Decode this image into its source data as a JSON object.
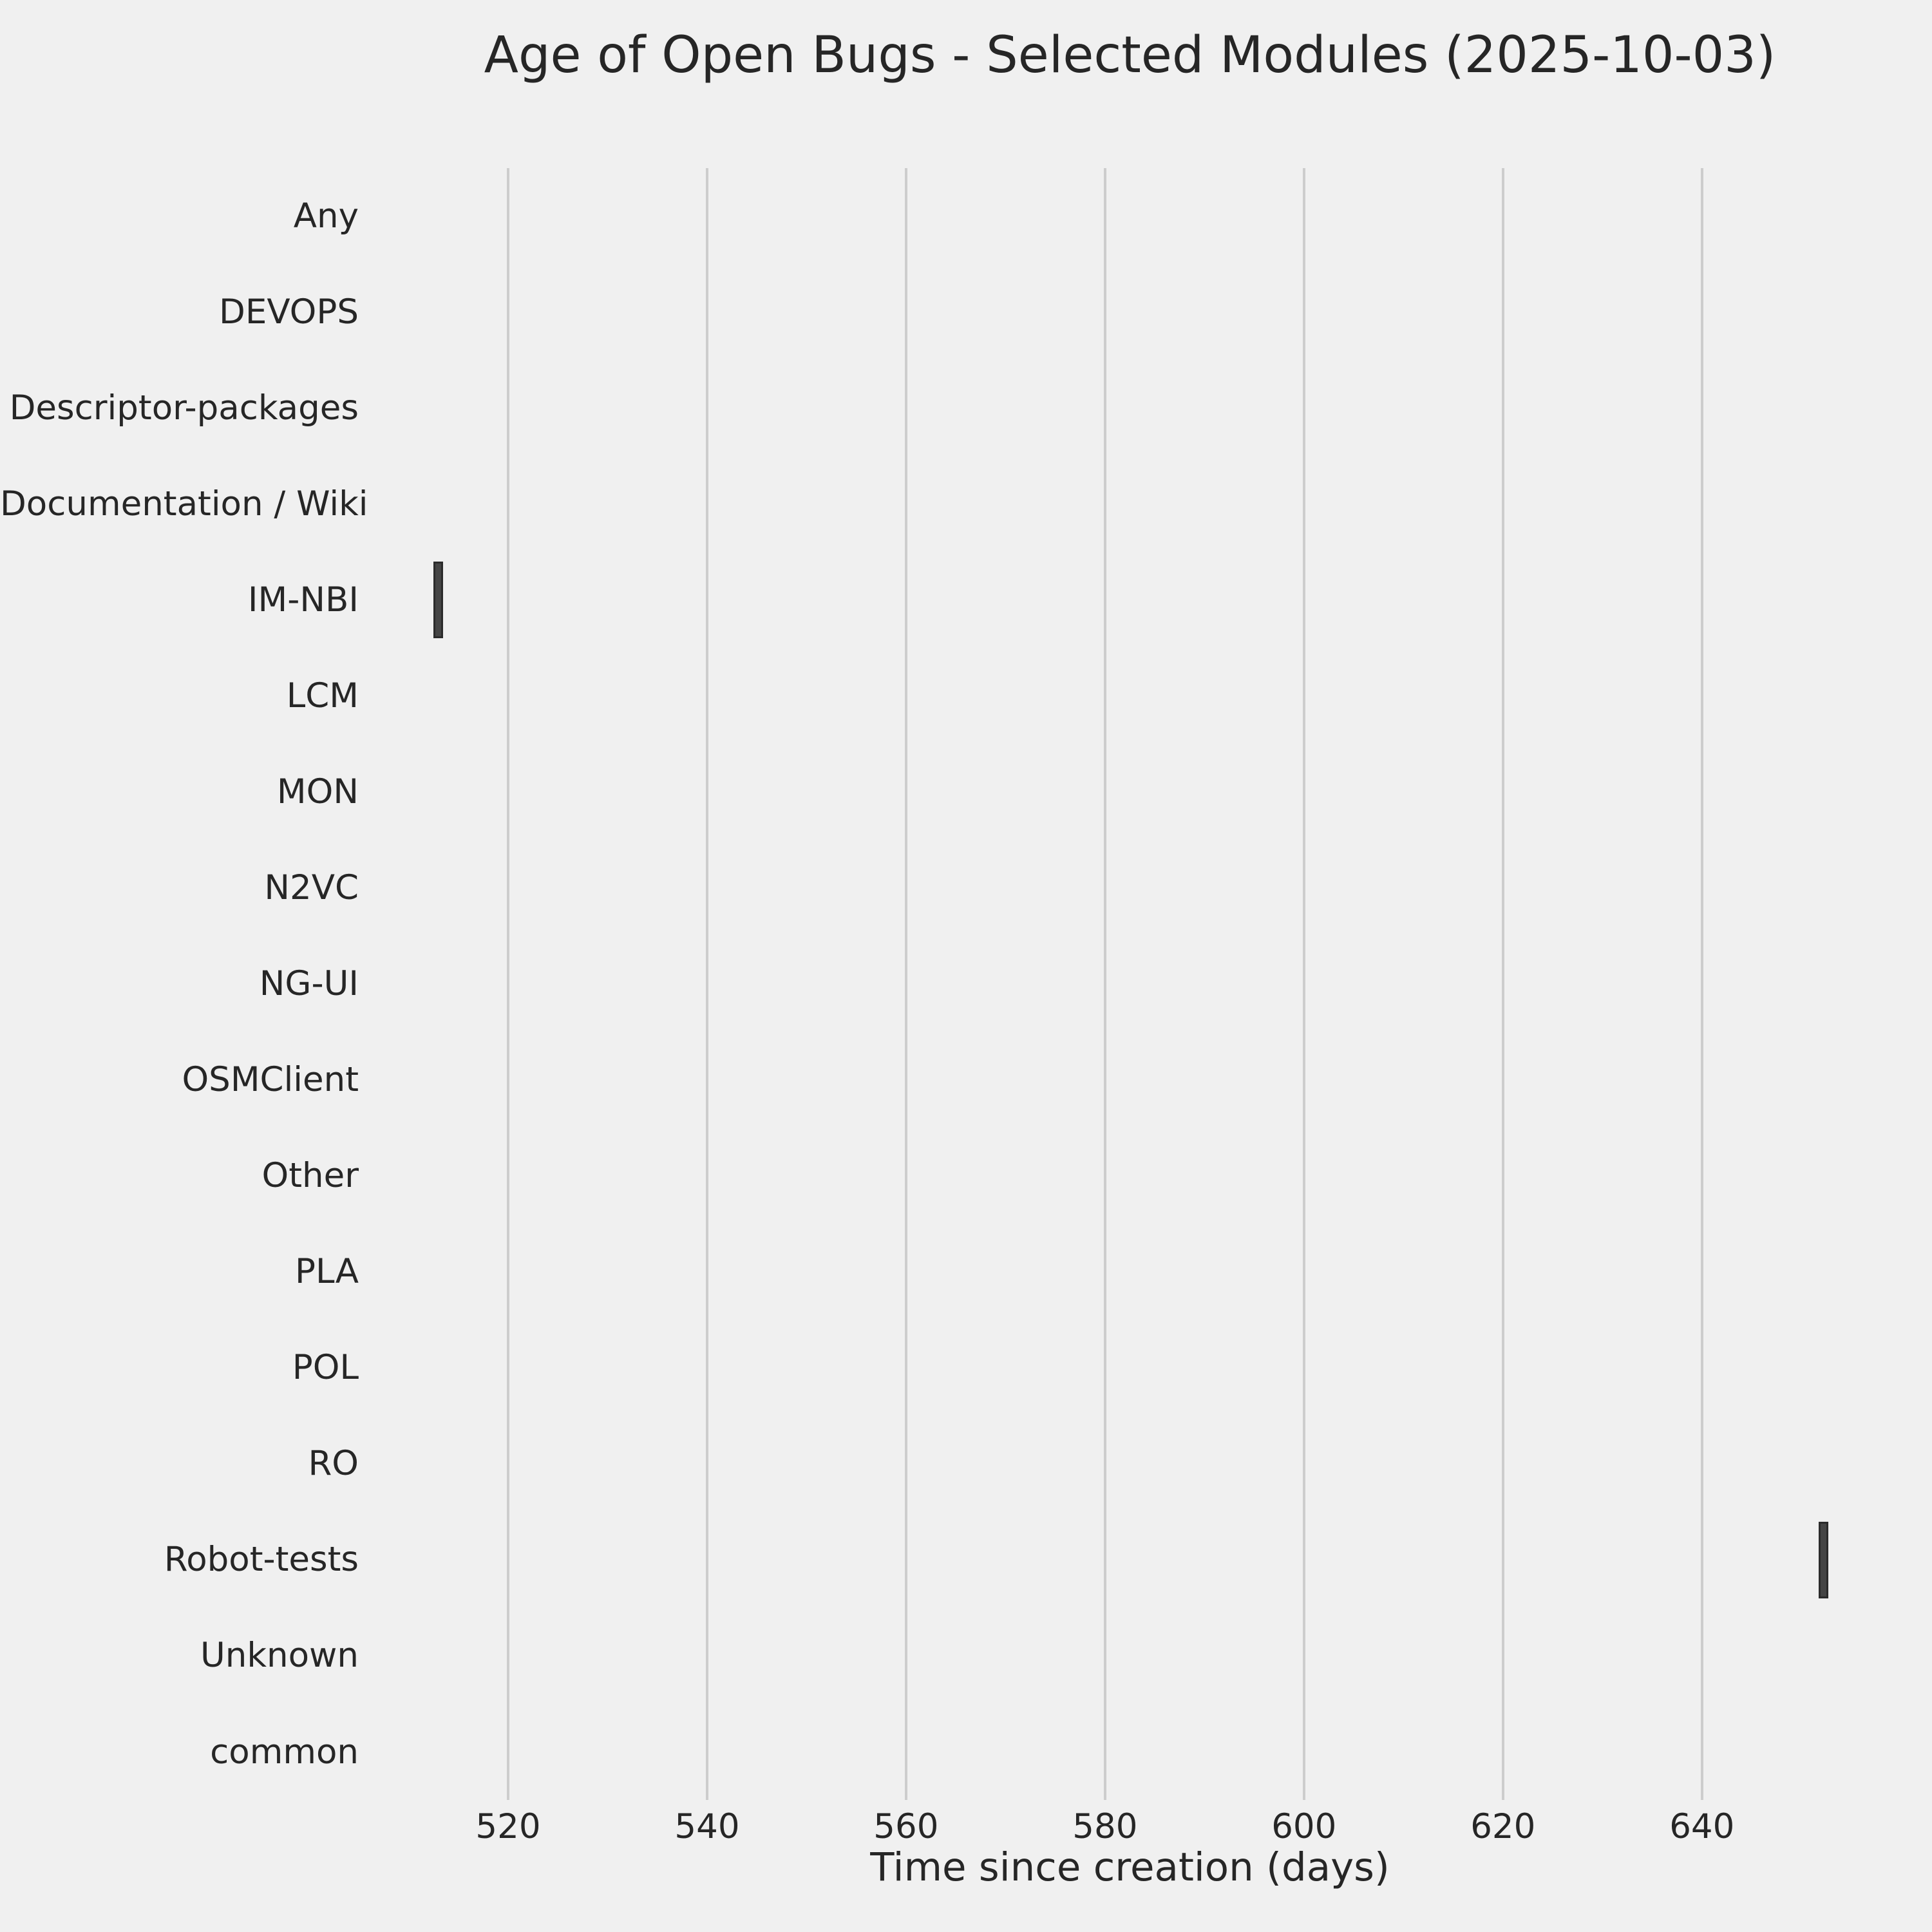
{
  "chart_data": {
    "type": "boxplot",
    "orientation": "horizontal",
    "title": "Age of Open Bugs - Selected Modules (2025-10-03)",
    "xlabel": "Time since creation (days)",
    "categories": [
      "Any",
      "DEVOPS",
      "Descriptor-packages",
      "Documentation / Wiki",
      "IM-NBI",
      "LCM",
      "MON",
      "N2VC",
      "NG-UI",
      "OSMClient",
      "Other",
      "PLA",
      "POL",
      "RO",
      "Robot-tests",
      "Unknown",
      "common"
    ],
    "series": [
      {
        "module": "Any",
        "box": null
      },
      {
        "module": "DEVOPS",
        "box": null
      },
      {
        "module": "Descriptor-packages",
        "box": null
      },
      {
        "module": "Documentation / Wiki",
        "box": null
      },
      {
        "module": "IM-NBI",
        "box": {
          "low": 512.5,
          "median": 513.0,
          "high": 513.5
        }
      },
      {
        "module": "LCM",
        "box": null
      },
      {
        "module": "MON",
        "box": null
      },
      {
        "module": "N2VC",
        "box": null
      },
      {
        "module": "NG-UI",
        "box": null
      },
      {
        "module": "OSMClient",
        "box": null
      },
      {
        "module": "Other",
        "box": null
      },
      {
        "module": "PLA",
        "box": null
      },
      {
        "module": "POL",
        "box": null
      },
      {
        "module": "RO",
        "box": null
      },
      {
        "module": "Robot-tests",
        "box": {
          "low": 651.7,
          "median": 652.2,
          "high": 652.7
        }
      },
      {
        "module": "Unknown",
        "box": null
      },
      {
        "module": "common",
        "box": null
      }
    ],
    "xticks": [
      520,
      540,
      560,
      580,
      600,
      620,
      640
    ],
    "xlim": [
      505.5,
      659.5
    ],
    "units": "days",
    "grid": {
      "axis": "x",
      "on": true
    },
    "legend": null,
    "colors": {
      "background": "#f0f0f0",
      "box_fill": "#454545",
      "box_edge": "#2b2b2b",
      "grid": "#cdcdcd",
      "text": "#262626"
    }
  }
}
